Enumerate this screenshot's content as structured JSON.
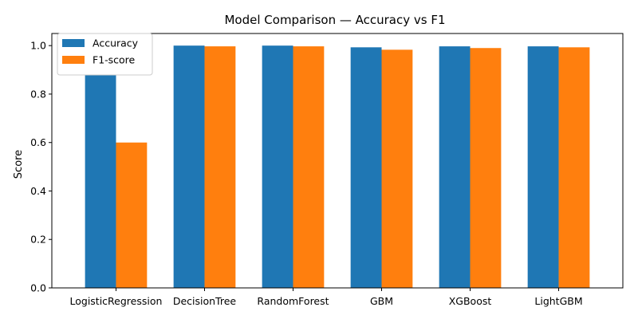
{
  "chart_data": {
    "type": "bar",
    "title": "Model Comparison — Accuracy vs F1",
    "xlabel": "",
    "ylabel": "Score",
    "ylim": [
      0,
      1.05
    ],
    "yticks": [
      "0.0",
      "0.2",
      "0.4",
      "0.6",
      "0.8",
      "1.0"
    ],
    "categories": [
      "LogisticRegression",
      "DecisionTree",
      "RandomForest",
      "GBM",
      "XGBoost",
      "LightGBM"
    ],
    "series": [
      {
        "name": "Accuracy",
        "color": "#1f77b4",
        "values": [
          0.88,
          1.0,
          1.0,
          0.993,
          0.997,
          0.997
        ]
      },
      {
        "name": "F1-score",
        "color": "#ff7f0e",
        "values": [
          0.6,
          0.997,
          0.997,
          0.983,
          0.99,
          0.993
        ]
      }
    ],
    "grid": false,
    "legend": "upper-left"
  }
}
